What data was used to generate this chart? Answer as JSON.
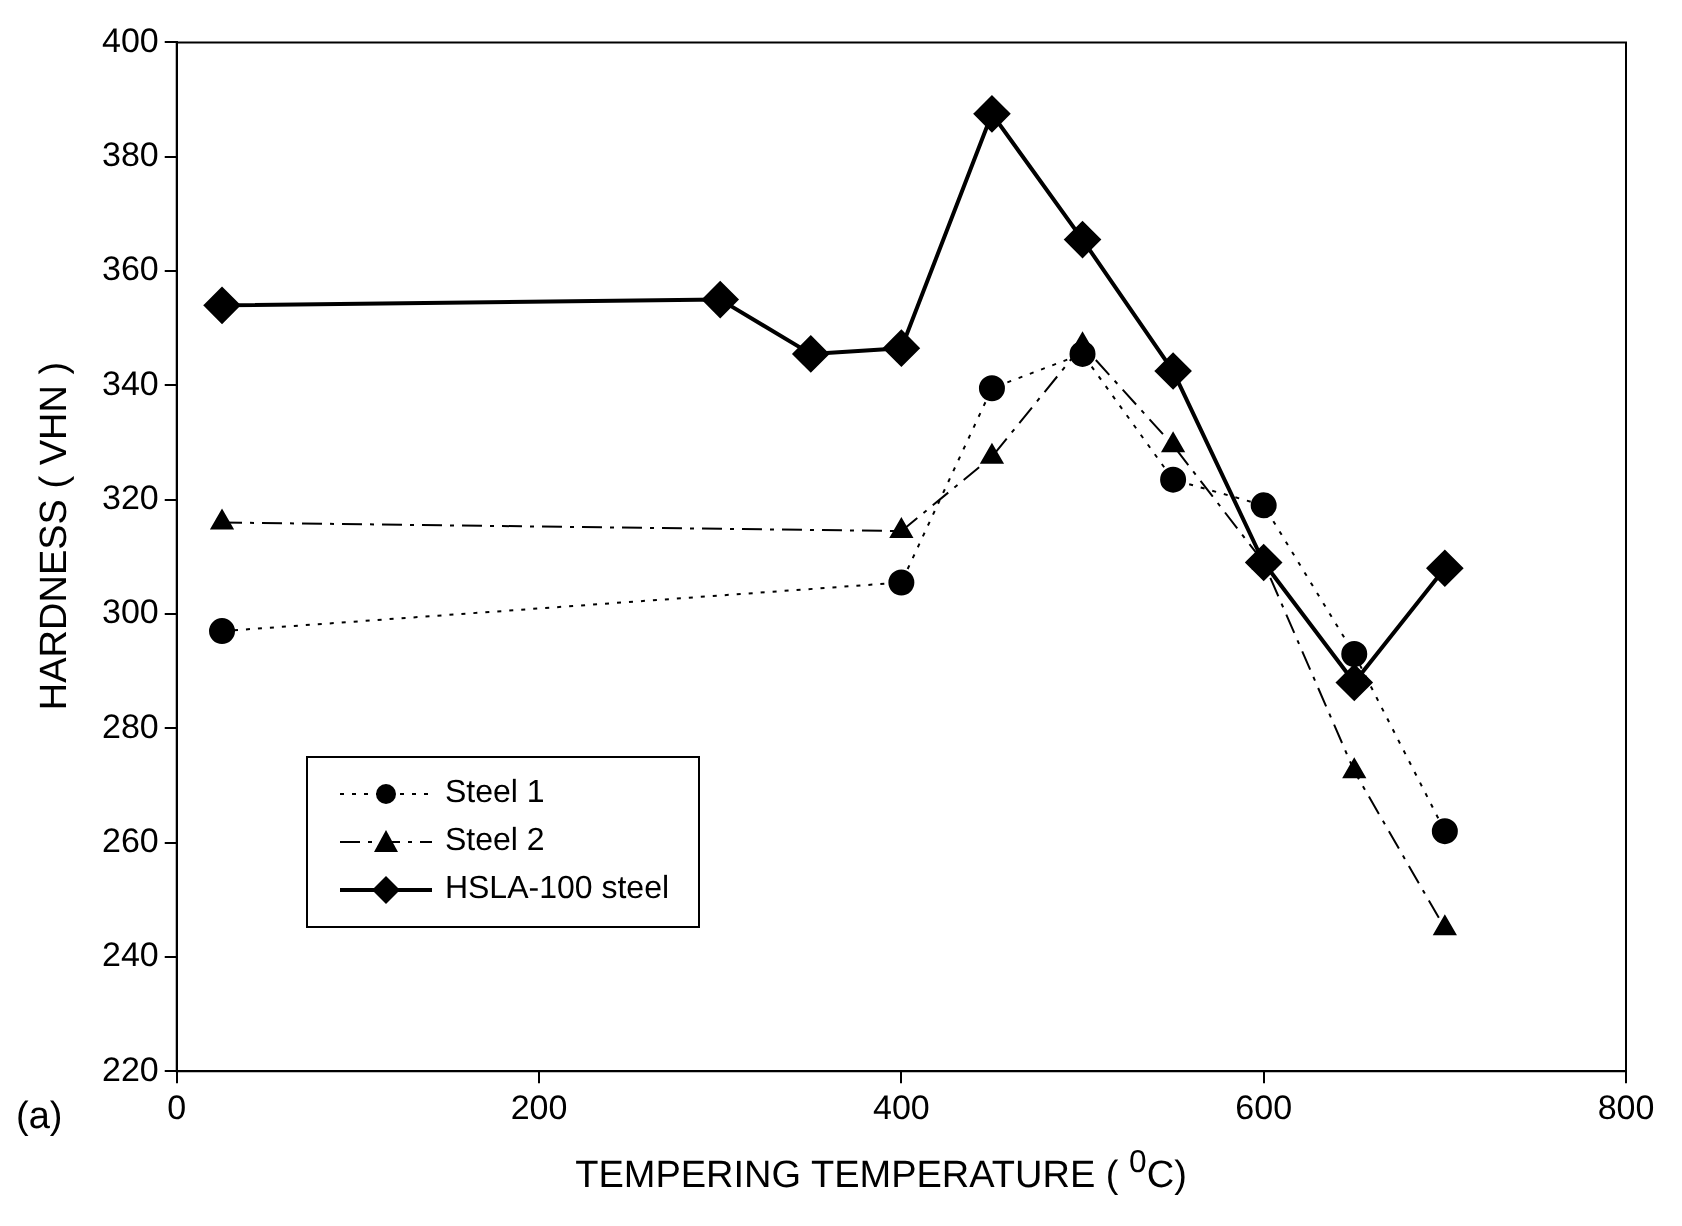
{
  "chart_data": {
    "type": "line",
    "xlabel": "TEMPERING TEMPERATURE ( $^{0}$C)",
    "ylabel": "HARDNESS ( VHN )",
    "annotations": [
      "(a)"
    ],
    "xlim": [
      0,
      800
    ],
    "xticks": [
      0,
      200,
      400,
      600,
      800
    ],
    "ylim": [
      220,
      400
    ],
    "yticks": [
      220,
      240,
      260,
      280,
      300,
      320,
      340,
      360,
      380,
      400
    ],
    "grid": false,
    "legend": "bottom left",
    "series": [
      {
        "name": "Steel 1",
        "color": "#000000",
        "marker": "circle",
        "line_style": "dotted",
        "x": [
          25,
          400,
          450,
          500,
          550,
          600,
          650,
          700
        ],
        "values": [
          297,
          305.5,
          339.5,
          345.5,
          323.5,
          319,
          293,
          262
        ]
      },
      {
        "name": "Steel 2",
        "color": "#000000",
        "marker": "triangle",
        "line_style": "dashed",
        "x": [
          25,
          400,
          450,
          500,
          550,
          600,
          650,
          700
        ],
        "values": [
          316,
          314.5,
          327.5,
          347,
          329.5,
          309,
          272.5,
          245
        ]
      },
      {
        "name": "HSLA-100 steel",
        "color": "#000000",
        "marker": "diamond",
        "line_style": "solid",
        "x": [
          25,
          300,
          350,
          400,
          450,
          500,
          550,
          600,
          650,
          700
        ],
        "values": [
          354,
          355,
          345.5,
          346.5,
          387.5,
          365.5,
          342.5,
          309,
          288,
          308
        ]
      }
    ]
  }
}
